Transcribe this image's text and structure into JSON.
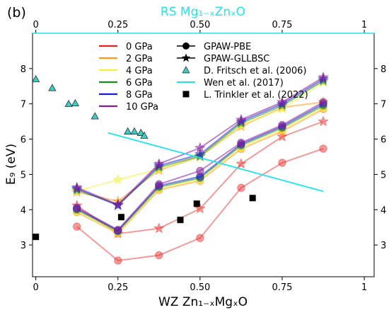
{
  "chart_data": {
    "type": "line",
    "panel_label": "(b)",
    "xlabel": "WZ Zn₁₋ₓMgₓO",
    "x2label": "RS Mg₁₋ₓZnₓO",
    "ylabel": "E₉ (eV)",
    "xlim": [
      -0.01,
      1.03
    ],
    "ylim": [
      2.1,
      9.0
    ],
    "xticks": [
      0,
      0.25,
      0.5,
      0.75,
      1
    ],
    "xtick_labels": [
      "0",
      "0.25",
      "0.50",
      "0.75",
      "1"
    ],
    "yticks": [
      3,
      4,
      5,
      6,
      7,
      8
    ],
    "ytick_labels": [
      "3",
      "4",
      "5",
      "6",
      "7",
      "8"
    ],
    "legend_loc": "upper-center",
    "pressure_series": [
      {
        "name": "0 GPa",
        "color": "#e8201c",
        "pbe": [
          3.52,
          2.56,
          2.71,
          3.2,
          4.62,
          5.33,
          5.73
        ],
        "gllbsc": [
          4.12,
          3.32,
          3.47,
          4.03,
          5.3,
          6.07,
          6.5
        ]
      },
      {
        "name": "2 GPa",
        "color": "#ff9a1a",
        "pbe": [
          3.93,
          3.33,
          4.56,
          4.82,
          5.72,
          6.22,
          6.85
        ],
        "gllbsc": [
          4.5,
          4.24,
          5.12,
          5.5,
          6.36,
          6.9,
          7.05
        ]
      },
      {
        "name": "4 GPa",
        "color": "#f6f03c",
        "pbe": [
          3.97,
          3.36,
          4.6,
          4.86,
          5.77,
          6.27,
          6.9
        ],
        "gllbsc": [
          4.53,
          4.85,
          5.15,
          5.52,
          6.4,
          6.86,
          7.61
        ]
      },
      {
        "name": "6 GPa",
        "color": "#1a8c1a",
        "pbe": [
          4.0,
          3.39,
          4.64,
          4.9,
          5.82,
          6.32,
          6.95
        ],
        "gllbsc": [
          4.56,
          4.14,
          5.2,
          5.52,
          6.45,
          6.95,
          7.65
        ]
      },
      {
        "name": "8 GPa",
        "color": "#1c1cd8",
        "pbe": [
          4.03,
          3.41,
          4.68,
          4.94,
          5.86,
          6.36,
          7.0
        ],
        "gllbsc": [
          4.6,
          4.12,
          5.25,
          5.57,
          6.5,
          7.0,
          7.7
        ]
      },
      {
        "name": "10 GPa",
        "color": "#8a1c9a",
        "pbe": [
          4.06,
          3.43,
          4.72,
          5.1,
          5.9,
          6.4,
          7.05
        ],
        "gllbsc": [
          4.63,
          4.15,
          5.3,
          5.75,
          6.55,
          7.05,
          7.75
        ]
      }
    ],
    "series_x": [
      0.125,
      0.25,
      0.375,
      0.5,
      0.625,
      0.75,
      0.875
    ],
    "method_legend": [
      {
        "name": "GPAW-PBE",
        "marker": "circle"
      },
      {
        "name": "GPAW-GLLBSC",
        "marker": "star"
      }
    ],
    "fritsch": {
      "name": "D. Fritsch et al. (2006)",
      "color": "#3ec9c2",
      "x": [
        0.0,
        0.05,
        0.1,
        0.12,
        0.18,
        0.28,
        0.3,
        0.32,
        0.33
      ],
      "y": [
        7.7,
        7.45,
        7.0,
        7.02,
        6.65,
        6.22,
        6.22,
        6.18,
        6.1
      ]
    },
    "wen": {
      "name": "Wen et al. (2017)",
      "color": "#1ee6ef",
      "x": [
        0.22,
        0.875
      ],
      "y": [
        6.18,
        4.52
      ]
    },
    "trinkler": {
      "name": "L. Trinkler et al. (2022)",
      "color": "#000000",
      "x": [
        0.0,
        0.26,
        0.44,
        0.49,
        0.66
      ],
      "y": [
        3.23,
        3.79,
        3.71,
        4.17,
        4.33
      ]
    },
    "rs_line": {
      "y": 9.0,
      "color": "#1ee6ef"
    }
  }
}
